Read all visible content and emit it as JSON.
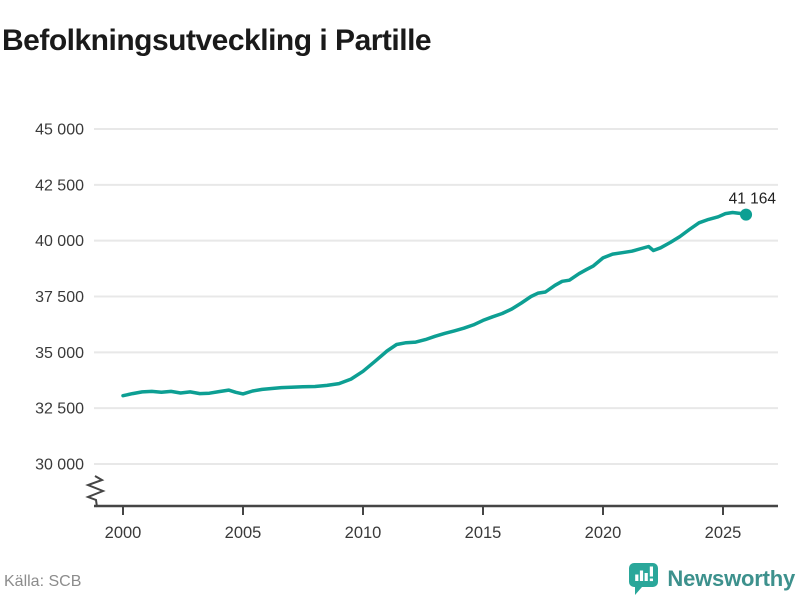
{
  "title": "Befolkningsutveckling i Partille",
  "source_label": "Källa: SCB",
  "branding": {
    "name": "Newsworthy",
    "icon": "newsworthy-speech-bubble-bar-chart-icon",
    "wordmark_color": "#3d918d",
    "icon_color": "#2aa79a"
  },
  "colors": {
    "line": "#0d9f93",
    "grid": "#e8e8e8",
    "axis": "#454545",
    "tick_text": "#3a3a3a",
    "title_text": "#1a1a1a",
    "annotation_text": "#222222",
    "source_text": "#8c8c8c"
  },
  "chart_data": {
    "type": "line",
    "title": "Befolkningsutveckling i Partille",
    "source": "Källa: SCB",
    "grid": "horizontal",
    "legend": "none",
    "axis_break": true,
    "x_ticks": [
      2000,
      2005,
      2010,
      2015,
      2020,
      2025
    ],
    "xlim": [
      2000,
      2027.3
    ],
    "y_ticks": [
      {
        "value": 30000,
        "label": "30 000"
      },
      {
        "value": 32500,
        "label": "32 500"
      },
      {
        "value": 35000,
        "label": "35 000"
      },
      {
        "value": 37500,
        "label": "37 500"
      },
      {
        "value": 40000,
        "label": "40 000"
      },
      {
        "value": 42500,
        "label": "42 500"
      },
      {
        "value": 45000,
        "label": "45 000"
      }
    ],
    "end_label": "41 164",
    "end_point": [
      2025.96,
      41164
    ],
    "points": [
      [
        2000.0,
        33060
      ],
      [
        2000.4,
        33150
      ],
      [
        2000.8,
        33230
      ],
      [
        2001.2,
        33250
      ],
      [
        2001.6,
        33210
      ],
      [
        2002.0,
        33250
      ],
      [
        2002.4,
        33180
      ],
      [
        2002.8,
        33230
      ],
      [
        2003.2,
        33150
      ],
      [
        2003.6,
        33170
      ],
      [
        2004.0,
        33240
      ],
      [
        2004.4,
        33310
      ],
      [
        2004.7,
        33210
      ],
      [
        2005.0,
        33140
      ],
      [
        2005.4,
        33270
      ],
      [
        2005.8,
        33340
      ],
      [
        2006.2,
        33380
      ],
      [
        2006.6,
        33420
      ],
      [
        2007.0,
        33440
      ],
      [
        2007.5,
        33460
      ],
      [
        2008.0,
        33470
      ],
      [
        2008.5,
        33520
      ],
      [
        2009.0,
        33600
      ],
      [
        2009.5,
        33800
      ],
      [
        2010.0,
        34150
      ],
      [
        2010.5,
        34600
      ],
      [
        2011.0,
        35060
      ],
      [
        2011.4,
        35350
      ],
      [
        2011.8,
        35430
      ],
      [
        2012.2,
        35460
      ],
      [
        2012.6,
        35570
      ],
      [
        2013.0,
        35720
      ],
      [
        2013.4,
        35850
      ],
      [
        2013.8,
        35960
      ],
      [
        2014.2,
        36080
      ],
      [
        2014.6,
        36230
      ],
      [
        2015.0,
        36430
      ],
      [
        2015.4,
        36590
      ],
      [
        2015.8,
        36740
      ],
      [
        2016.2,
        36940
      ],
      [
        2016.6,
        37210
      ],
      [
        2017.0,
        37500
      ],
      [
        2017.3,
        37650
      ],
      [
        2017.6,
        37700
      ],
      [
        2018.0,
        38000
      ],
      [
        2018.3,
        38180
      ],
      [
        2018.6,
        38230
      ],
      [
        2019.0,
        38520
      ],
      [
        2019.3,
        38700
      ],
      [
        2019.6,
        38870
      ],
      [
        2020.0,
        39230
      ],
      [
        2020.4,
        39400
      ],
      [
        2020.8,
        39460
      ],
      [
        2021.2,
        39530
      ],
      [
        2021.6,
        39650
      ],
      [
        2021.9,
        39740
      ],
      [
        2022.1,
        39560
      ],
      [
        2022.4,
        39680
      ],
      [
        2022.8,
        39920
      ],
      [
        2023.2,
        40180
      ],
      [
        2023.6,
        40500
      ],
      [
        2024.0,
        40800
      ],
      [
        2024.4,
        40950
      ],
      [
        2024.8,
        41070
      ],
      [
        2025.1,
        41210
      ],
      [
        2025.4,
        41260
      ],
      [
        2025.7,
        41220
      ],
      [
        2025.96,
        41164
      ]
    ]
  }
}
